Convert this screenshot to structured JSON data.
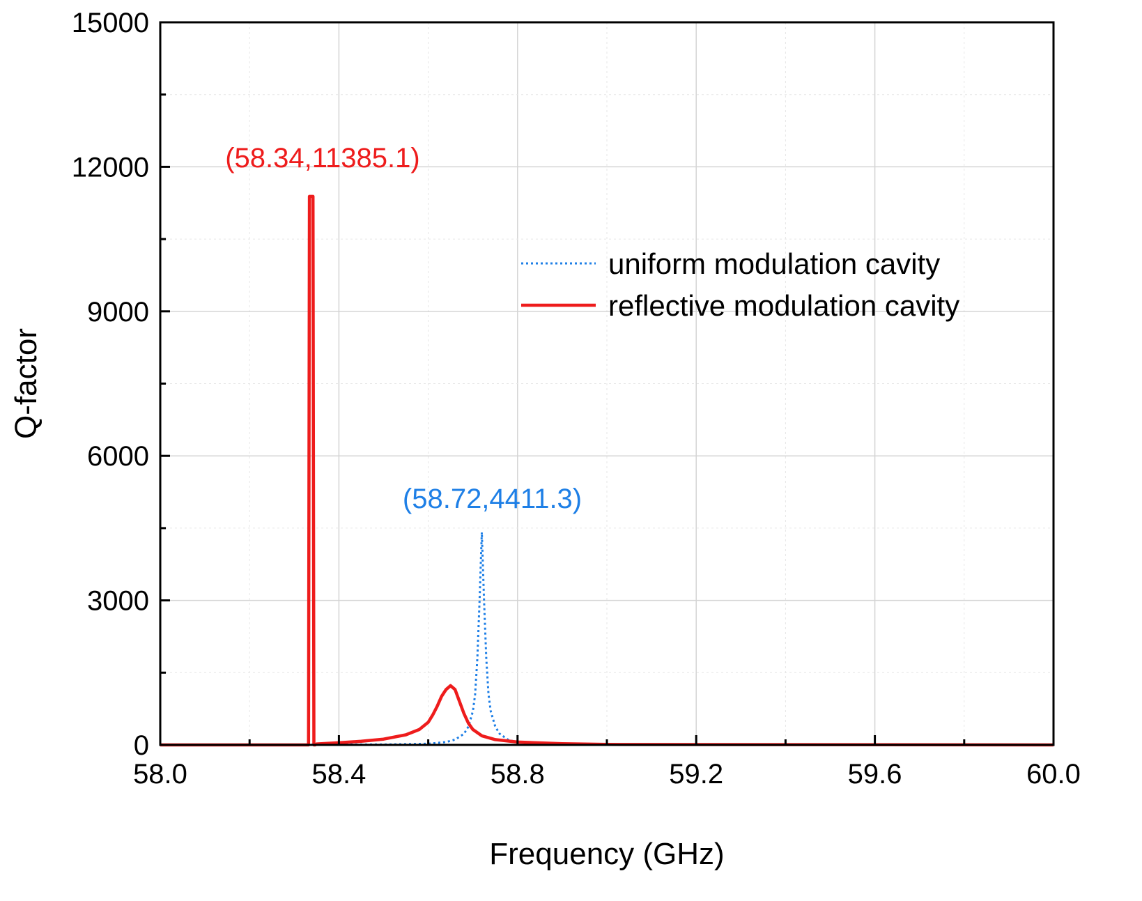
{
  "chart_data": {
    "type": "line",
    "title": "",
    "xlabel": "Frequency (GHz)",
    "ylabel": "Q-factor",
    "xlim": [
      58.0,
      60.0
    ],
    "ylim": [
      0,
      15000
    ],
    "x_ticks": [
      58.0,
      58.4,
      58.8,
      59.2,
      59.6,
      60.0
    ],
    "x_tick_labels": [
      "58.0",
      "58.4",
      "58.8",
      "59.2",
      "59.6",
      "60.0"
    ],
    "y_ticks": [
      0,
      3000,
      6000,
      9000,
      12000,
      15000
    ],
    "y_tick_labels": [
      "0",
      "3000",
      "6000",
      "9000",
      "12000",
      "15000"
    ],
    "grid": true,
    "legend_position": "top-right",
    "series": [
      {
        "name": "uniform modulation cavity",
        "color": "#1e7fe6",
        "style": "dotted",
        "peak": {
          "x": 58.72,
          "y": 4411.3
        },
        "x": [
          58.0,
          58.5,
          58.6,
          58.64,
          58.66,
          58.68,
          58.69,
          58.7,
          58.705,
          58.71,
          58.715,
          58.72,
          58.725,
          58.73,
          58.735,
          58.74,
          58.75,
          58.76,
          58.78,
          58.8,
          58.9,
          60.0
        ],
        "values": [
          0,
          8,
          25,
          60,
          110,
          230,
          380,
          700,
          1050,
          1800,
          3000,
          4411.3,
          3000,
          1800,
          1050,
          700,
          380,
          230,
          100,
          60,
          15,
          0
        ]
      },
      {
        "name": "reflective modulation cavity",
        "color": "#ee1c1c",
        "style": "solid",
        "peak": {
          "x": 58.34,
          "y": 11385.1
        },
        "x": [
          58.0,
          58.3,
          58.332,
          58.334,
          58.338,
          58.342,
          58.344,
          58.347,
          58.35,
          58.4,
          58.45,
          58.5,
          58.55,
          58.58,
          58.6,
          58.61,
          58.62,
          58.63,
          58.64,
          58.65,
          58.66,
          58.67,
          58.68,
          58.69,
          58.7,
          58.72,
          58.75,
          58.8,
          58.9,
          59.0,
          60.0
        ],
        "values": [
          0,
          0,
          0,
          11385.1,
          11385.1,
          11385.1,
          0,
          0,
          20,
          45,
          75,
          120,
          210,
          320,
          470,
          620,
          800,
          1010,
          1150,
          1230,
          1150,
          900,
          650,
          450,
          320,
          190,
          110,
          60,
          25,
          10,
          0
        ]
      }
    ],
    "annotations": [
      {
        "text": "(58.34,11385.1)",
        "x": 58.34,
        "y": 11385.1,
        "color": "#ee1c1c"
      },
      {
        "text": "(58.72,4411.3)",
        "x": 58.72,
        "y": 4411.3,
        "color": "#1e7fe6"
      }
    ]
  }
}
